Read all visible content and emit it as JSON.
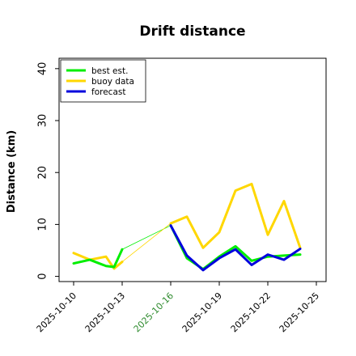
{
  "chart_data": {
    "type": "line",
    "title": "Drift distance",
    "xlabel": "",
    "ylabel": "Distance (km)",
    "x_ticks": [
      "2025-10-10",
      "2025-10-13",
      "2025-10-16",
      "2025-10-19",
      "2025-10-22",
      "2025-10-25"
    ],
    "x_tick_colors": [
      "#000000",
      "#000000",
      "#2e8b2e",
      "#000000",
      "#000000",
      "#000000"
    ],
    "x_range": [
      -0.9,
      15.6
    ],
    "y_ticks": [
      0,
      10,
      20,
      30,
      40
    ],
    "ylim": [
      -1,
      42
    ],
    "grid": false,
    "legend_position": "top-left",
    "series": [
      {
        "name": "best est.",
        "color": "#00ee00",
        "width": 3,
        "segments": [
          [
            [
              0,
              2.5
            ],
            [
              1,
              3.2
            ],
            [
              2,
              2.0
            ],
            [
              2.5,
              1.8
            ],
            [
              3,
              5.2
            ]
          ],
          [
            [
              6,
              9.8
            ],
            [
              7,
              3.5
            ],
            [
              8,
              1.4
            ],
            [
              9,
              3.8
            ],
            [
              10,
              5.8
            ],
            [
              11,
              3.0
            ],
            [
              12,
              3.8
            ],
            [
              13,
              4.0
            ],
            [
              14,
              4.2
            ]
          ]
        ]
      },
      {
        "name": "buoy data",
        "color": "#ffd700",
        "width": 3,
        "segments": [
          [
            [
              0,
              4.5
            ],
            [
              1,
              3.2
            ],
            [
              2,
              3.8
            ],
            [
              2.5,
              1.5
            ],
            [
              3,
              2.8
            ]
          ],
          [
            [
              6,
              10.2
            ],
            [
              7,
              11.5
            ],
            [
              8,
              5.5
            ],
            [
              9,
              8.5
            ],
            [
              10,
              16.5
            ],
            [
              11,
              17.8
            ],
            [
              12,
              8.0
            ],
            [
              13,
              14.5
            ],
            [
              14,
              5.5
            ]
          ]
        ]
      },
      {
        "name": "forecast",
        "color": "#0000dd",
        "width": 3,
        "segments": [
          [
            [
              6,
              9.8
            ],
            [
              7,
              4.0
            ],
            [
              8,
              1.2
            ],
            [
              9,
              3.5
            ],
            [
              10,
              5.2
            ],
            [
              11,
              2.2
            ],
            [
              12,
              4.2
            ],
            [
              13,
              3.2
            ],
            [
              14,
              5.3
            ]
          ]
        ]
      }
    ],
    "connectors": [
      {
        "color": "#00ee00",
        "points": [
          [
            3,
            5.2
          ],
          [
            6,
            9.8
          ]
        ]
      },
      {
        "color": "#ffd700",
        "points": [
          [
            3,
            2.8
          ],
          [
            6,
            10.2
          ]
        ]
      }
    ]
  }
}
